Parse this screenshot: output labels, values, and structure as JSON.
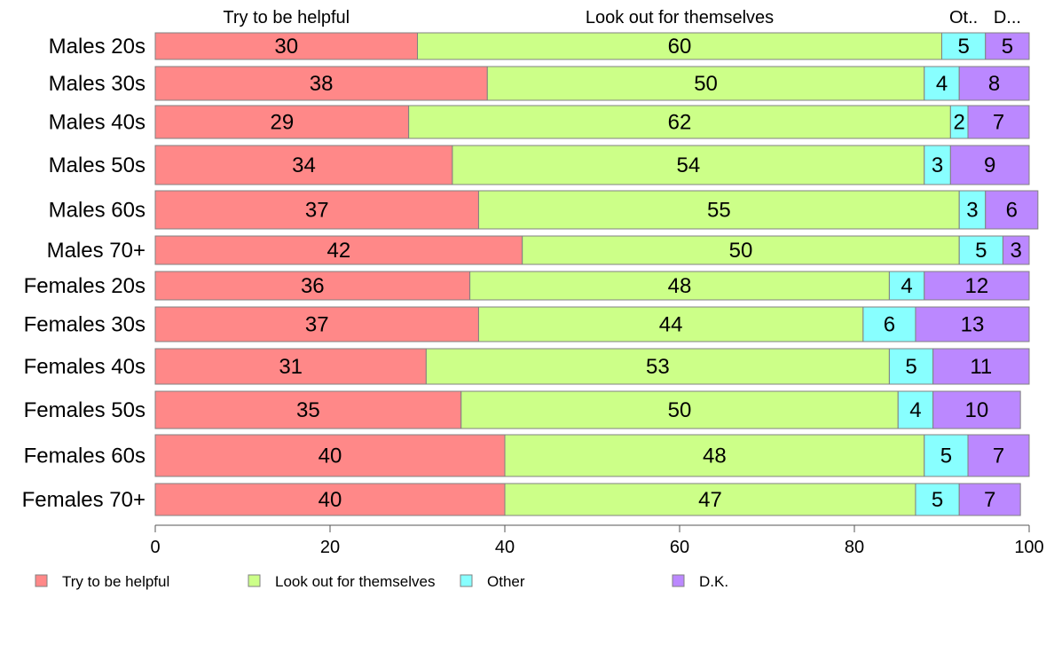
{
  "chart_data": {
    "type": "bar",
    "orientation": "horizontal",
    "stacked": true,
    "xlim": [
      0,
      100
    ],
    "x_ticks": [
      "0",
      "20",
      "40",
      "60",
      "80",
      "100"
    ],
    "top_labels": [
      "Try to be helpful",
      "Look out for themselves",
      "Ot..",
      "D..."
    ],
    "categories": [
      "Males 20s",
      "Males 30s",
      "Males 40s",
      "Males 50s",
      "Males 60s",
      "Males 70+",
      "Females 20s",
      "Females 30s",
      "Females 40s",
      "Females 50s",
      "Females 60s",
      "Females 70+"
    ],
    "series": [
      {
        "name": "Try to be helpful",
        "color": "#ff8888",
        "values": [
          30,
          38,
          29,
          34,
          37,
          42,
          36,
          37,
          31,
          35,
          40,
          40
        ]
      },
      {
        "name": "Look out for themselves",
        "color": "#ccff88",
        "values": [
          60,
          50,
          62,
          54,
          55,
          50,
          48,
          44,
          53,
          50,
          48,
          47
        ]
      },
      {
        "name": "Other",
        "color": "#88ffff",
        "values": [
          5,
          4,
          2,
          3,
          3,
          5,
          4,
          6,
          5,
          4,
          5,
          5
        ]
      },
      {
        "name": "D.K.",
        "color": "#bb88ff",
        "values": [
          5,
          8,
          7,
          9,
          6,
          3,
          12,
          13,
          11,
          10,
          7,
          7
        ]
      }
    ],
    "legend_placement": "bottom",
    "grid": false
  }
}
